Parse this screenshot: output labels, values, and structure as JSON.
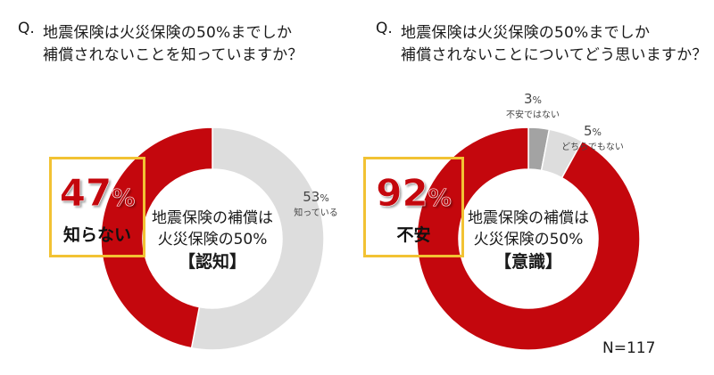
{
  "colors": {
    "red": "#c4070d",
    "light_gray": "#dddddd",
    "dark_gray": "#a3a3a3",
    "highlight_box": "#f2c233"
  },
  "chart_data": [
    {
      "type": "pie",
      "question_mark": "Q.",
      "title_line1": "地震保険は火災保険の50%までしか",
      "title_line2": "補償されないことを知っていますか？",
      "center_line1": "地震保険の補償は",
      "center_line2": "火災保険の50%",
      "center_line3": "【認知】",
      "highlight_value": "47",
      "highlight_unit": "%",
      "highlight_label": "知らない",
      "labels": [
        "知っている",
        "知らない"
      ],
      "values": [
        53,
        47
      ],
      "value_unit": "%",
      "colors": [
        "#dddddd",
        "#c4070d"
      ]
    },
    {
      "type": "pie",
      "question_mark": "Q.",
      "title_line1": "地震保険は火災保険の50%までしか",
      "title_line2": "補償されないことについてどう思いますか？",
      "center_line1": "地震保険の補償は",
      "center_line2": "火災保険の50%",
      "center_line3": "【意識】",
      "highlight_value": "92",
      "highlight_unit": "%",
      "highlight_label": "不安",
      "labels": [
        "不安ではない",
        "どちらでもない",
        "不安"
      ],
      "values": [
        3,
        5,
        92
      ],
      "value_unit": "%",
      "colors": [
        "#a3a3a3",
        "#dddddd",
        "#c4070d"
      ]
    }
  ],
  "sample_size": "N=117"
}
